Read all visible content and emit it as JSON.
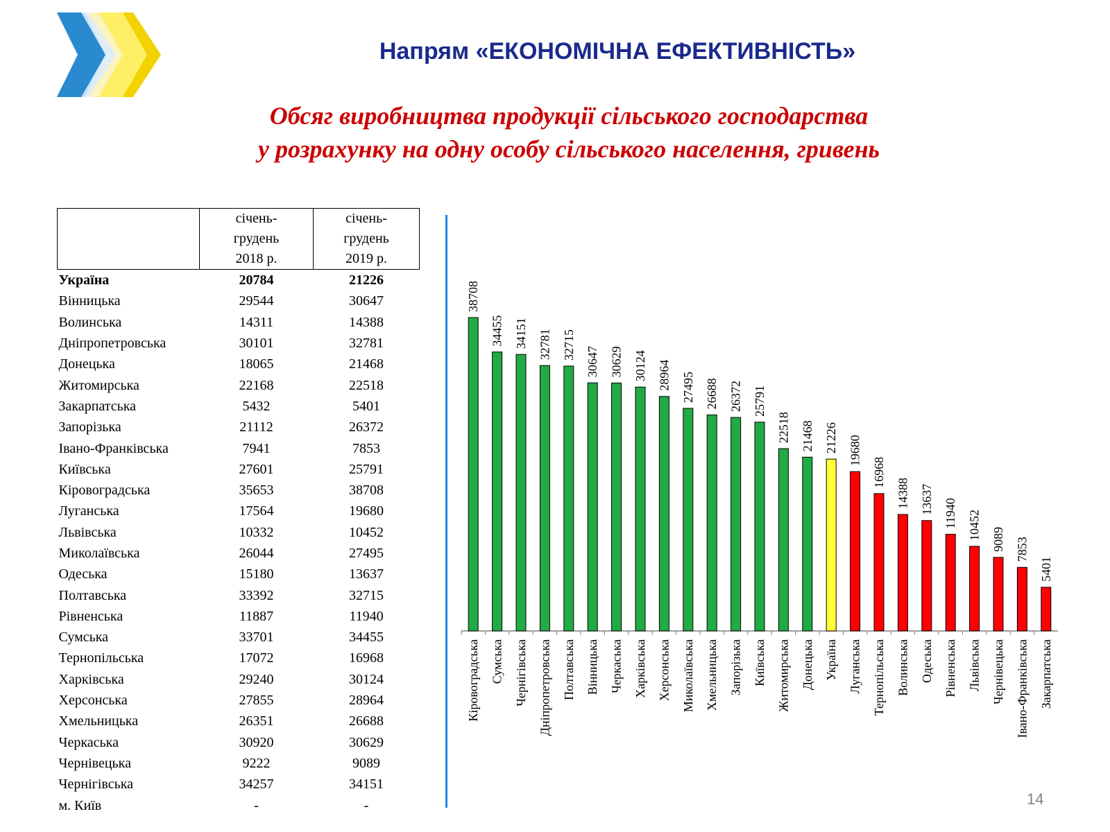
{
  "header": {
    "title": "Напрям «ЕКОНОМІЧНА ЕФЕКТИВНІСТЬ»",
    "logo_icon": "chevron-arrows-logo-icon"
  },
  "chart_title": {
    "line1": "Обсяг виробництва продукції сільського господарства",
    "line2": "у розрахунку на одну особу сільського населення, гривень"
  },
  "table": {
    "headers": [
      "",
      "січень-\nгрудень\n2018 р.",
      "січень-\nгрудень\n2019 р."
    ],
    "rows": [
      {
        "region": "Україна",
        "v2018": "20784",
        "v2019": "21226",
        "bold": true
      },
      {
        "region": "Вінницька",
        "v2018": "29544",
        "v2019": "30647"
      },
      {
        "region": "Волинська",
        "v2018": "14311",
        "v2019": "14388"
      },
      {
        "region": "Дніпропетровська",
        "v2018": "30101",
        "v2019": "32781"
      },
      {
        "region": "Донецька",
        "v2018": "18065",
        "v2019": "21468"
      },
      {
        "region": "Житомирська",
        "v2018": "22168",
        "v2019": "22518"
      },
      {
        "region": "Закарпатська",
        "v2018": "5432",
        "v2019": "5401"
      },
      {
        "region": "Запорізька",
        "v2018": "21112",
        "v2019": "26372"
      },
      {
        "region": "Івано-Франківська",
        "v2018": "7941",
        "v2019": "7853"
      },
      {
        "region": "Київська",
        "v2018": "27601",
        "v2019": "25791"
      },
      {
        "region": "Кіровоградська",
        "v2018": "35653",
        "v2019": "38708"
      },
      {
        "region": "Луганська",
        "v2018": "17564",
        "v2019": "19680"
      },
      {
        "region": "Львівська",
        "v2018": "10332",
        "v2019": "10452"
      },
      {
        "region": "Миколаївська",
        "v2018": "26044",
        "v2019": "27495"
      },
      {
        "region": "Одеська",
        "v2018": "15180",
        "v2019": "13637"
      },
      {
        "region": "Полтавська",
        "v2018": "33392",
        "v2019": "32715"
      },
      {
        "region": "Рівненська",
        "v2018": "11887",
        "v2019": "11940"
      },
      {
        "region": "Сумська",
        "v2018": "33701",
        "v2019": "34455"
      },
      {
        "region": "Тернопільська",
        "v2018": "17072",
        "v2019": "16968"
      },
      {
        "region": "Харківська",
        "v2018": "29240",
        "v2019": "30124"
      },
      {
        "region": "Херсонська",
        "v2018": "27855",
        "v2019": "28964"
      },
      {
        "region": "Хмельницька",
        "v2018": "26351",
        "v2019": "26688"
      },
      {
        "region": "Черкаська",
        "v2018": "30920",
        "v2019": "30629"
      },
      {
        "region": "Чернівецька",
        "v2018": "9222",
        "v2019": "9089"
      },
      {
        "region": "Чернігівська",
        "v2018": "34257",
        "v2019": "34151"
      },
      {
        "region": "м. Київ",
        "v2018": "-",
        "v2019": "-"
      }
    ]
  },
  "chart_data": {
    "type": "bar",
    "categories": [
      "Кіровоградська",
      "Сумська",
      "Чернігівська",
      "Дніпропетровська",
      "Полтавська",
      "Вінницька",
      "Черкаська",
      "Харківська",
      "Херсонська",
      "Миколаївська",
      "Хмельницька",
      "Запорізька",
      "Київська",
      "Житомирська",
      "Донецька",
      "Україна",
      "Луганська",
      "Тернопільська",
      "Волинська",
      "Одеська",
      "Рівненська",
      "Львівська",
      "Чернівецька",
      "Івано-Франківська",
      "Закарпатська"
    ],
    "values": [
      38708,
      34455,
      34151,
      32781,
      32715,
      30647,
      30629,
      30124,
      28964,
      27495,
      26688,
      26372,
      25791,
      22518,
      21468,
      21226,
      19680,
      16968,
      14388,
      13637,
      11940,
      10452,
      9089,
      7853,
      5401
    ],
    "colors": [
      "green",
      "green",
      "green",
      "green",
      "green",
      "green",
      "green",
      "green",
      "green",
      "green",
      "green",
      "green",
      "green",
      "green",
      "green",
      "yellow",
      "red",
      "red",
      "red",
      "red",
      "red",
      "red",
      "red",
      "red",
      "red"
    ],
    "palette": {
      "green": "#22aa44",
      "yellow": "#ffff33",
      "red": "#ff0000"
    },
    "title": "",
    "xlabel": "",
    "ylabel": "",
    "ylim": [
      0,
      40000
    ],
    "grid": false,
    "legend": "none",
    "data_labels": true
  },
  "footer": {
    "page_number": "14"
  },
  "colors": {
    "header_title": "#1a2a8c",
    "chart_title": "#cc0000",
    "divider": "#1e88e5"
  }
}
